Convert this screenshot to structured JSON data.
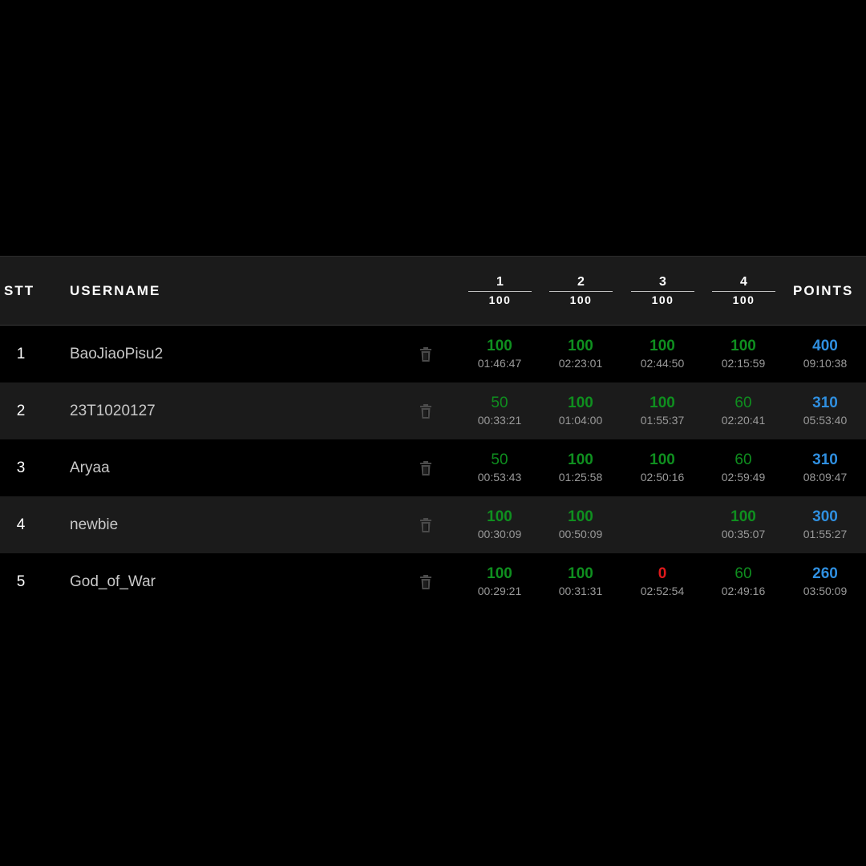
{
  "header": {
    "stt": "STT",
    "username": "USERNAME",
    "problems": [
      {
        "number": "1",
        "max": "100"
      },
      {
        "number": "2",
        "max": "100"
      },
      {
        "number": "3",
        "max": "100"
      },
      {
        "number": "4",
        "max": "100"
      }
    ],
    "points": "POINTS"
  },
  "rows": [
    {
      "rank": "1",
      "username": "BaoJiaoPisu2",
      "cells": [
        {
          "score": "100",
          "time": "01:46:47"
        },
        {
          "score": "100",
          "time": "02:23:01"
        },
        {
          "score": "100",
          "time": "02:44:50"
        },
        {
          "score": "100",
          "time": "02:15:59"
        }
      ],
      "total": {
        "score": "400",
        "time": "09:10:38"
      }
    },
    {
      "rank": "2",
      "username": "23T1020127",
      "cells": [
        {
          "score": "50",
          "time": "00:33:21"
        },
        {
          "score": "100",
          "time": "01:04:00"
        },
        {
          "score": "100",
          "time": "01:55:37"
        },
        {
          "score": "60",
          "time": "02:20:41"
        }
      ],
      "total": {
        "score": "310",
        "time": "05:53:40"
      }
    },
    {
      "rank": "3",
      "username": "Aryaa",
      "cells": [
        {
          "score": "50",
          "time": "00:53:43"
        },
        {
          "score": "100",
          "time": "01:25:58"
        },
        {
          "score": "100",
          "time": "02:50:16"
        },
        {
          "score": "60",
          "time": "02:59:49"
        }
      ],
      "total": {
        "score": "310",
        "time": "08:09:47"
      }
    },
    {
      "rank": "4",
      "username": "newbie",
      "cells": [
        {
          "score": "100",
          "time": "00:30:09"
        },
        {
          "score": "100",
          "time": "00:50:09"
        },
        {
          "score": "",
          "time": ""
        },
        {
          "score": "100",
          "time": "00:35:07"
        }
      ],
      "total": {
        "score": "300",
        "time": "01:55:27"
      }
    },
    {
      "rank": "5",
      "username": "God_of_War",
      "cells": [
        {
          "score": "100",
          "time": "00:29:21"
        },
        {
          "score": "100",
          "time": "00:31:31"
        },
        {
          "score": "0",
          "time": "02:52:54"
        },
        {
          "score": "60",
          "time": "02:49:16"
        }
      ],
      "total": {
        "score": "260",
        "time": "03:50:09"
      }
    }
  ],
  "colors": {
    "full_score": "#0f8f1f",
    "partial_score": "#0f8f1f",
    "zero_score": "#e0191b",
    "total_score": "#2f8fe0",
    "time_text": "#9a9a9a",
    "row_alt_background": "#1b1b1b"
  },
  "icons": {
    "delete": "trash-icon"
  }
}
